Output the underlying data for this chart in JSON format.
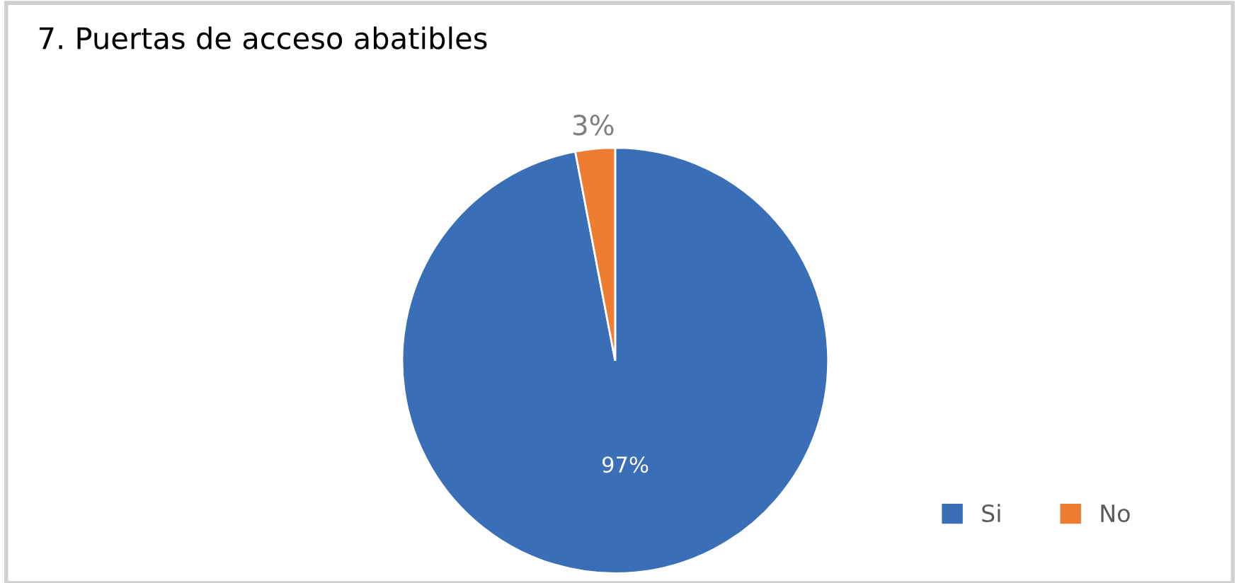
{
  "chart_data": {
    "type": "pie",
    "title": "7. Puertas de acceso abatibles",
    "categories": [
      "Si",
      "No"
    ],
    "values": [
      97,
      3
    ],
    "colors": [
      "#3a6fb7",
      "#ed7d31"
    ],
    "value_labels": [
      "97%",
      "3%"
    ],
    "legend": "bottom right"
  }
}
